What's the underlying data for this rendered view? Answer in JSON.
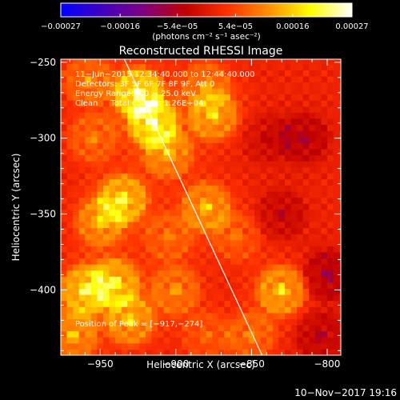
{
  "chart_data": {
    "type": "heatmap",
    "title": "Reconstructed RHESSI Image",
    "xlabel": "Heliocentric X (arcsec)",
    "ylabel": "Heliocentric Y (arcsec)",
    "xlim": [
      -976,
      -791
    ],
    "ylim": [
      -443,
      -248
    ],
    "x_ticks": [
      -950,
      -900,
      -850,
      -800
    ],
    "x_tick_labels": [
      "−950",
      "−900",
      "−850",
      "−800"
    ],
    "y_ticks": [
      -250,
      -300,
      -350,
      -400
    ],
    "y_tick_labels": [
      "−250",
      "−300",
      "−350",
      "−400"
    ],
    "colorbar": {
      "range": [
        -0.00027,
        0.00027
      ],
      "tick_values": [
        -0.00027,
        -0.00016,
        -5.4e-05,
        5.4e-05,
        0.00016,
        0.00027
      ],
      "tick_labels": [
        "−0.00027",
        "−0.00016",
        "−5.4e−05",
        "5.4e−05",
        "0.00016",
        "0.00027"
      ],
      "unit_label": "(photons cm⁻² s⁻¹ asec⁻²)",
      "colors": [
        "#0000ff",
        "#4000c0",
        "#800080",
        "#c00000",
        "#ff3000",
        "#ff9000",
        "#ffff00",
        "#ffffff"
      ]
    },
    "annotations": [
      "11−Jun−2015 12:34:40.000 to 12:44:40.000",
      "Detectors: 3F 5F 6F 7F 8F 9F, Att 0",
      "Energy Range: 7.0 − 25.0 keV",
      "Clean     Total counts: 1.26E+04"
    ],
    "peak_label": "Position of Peak = [−917,−274]",
    "peak": [
      -917,
      -274
    ],
    "limb_line": [
      [
        -934,
        -248
      ],
      [
        -843,
        -443
      ]
    ],
    "sources": [
      {
        "x": -925,
        "y": -270,
        "value": 0.00027
      },
      {
        "x": -915,
        "y": -290,
        "value": 0.00025
      },
      {
        "x": -905,
        "y": -310,
        "value": 0.00015
      },
      {
        "x": -958,
        "y": -262,
        "value": 0.00012
      },
      {
        "x": -935,
        "y": -340,
        "value": 0.00022
      },
      {
        "x": -950,
        "y": -355,
        "value": 0.00016
      },
      {
        "x": -960,
        "y": -400,
        "value": 0.00022
      },
      {
        "x": -940,
        "y": -395,
        "value": 0.0002
      },
      {
        "x": -930,
        "y": -420,
        "value": 0.00018
      },
      {
        "x": -968,
        "y": -430,
        "value": 0.00016
      },
      {
        "x": -900,
        "y": -400,
        "value": 0.00013
      },
      {
        "x": -880,
        "y": -345,
        "value": 0.00017
      },
      {
        "x": -875,
        "y": -285,
        "value": 0.00018
      },
      {
        "x": -880,
        "y": -265,
        "value": 0.00012
      },
      {
        "x": -830,
        "y": -400,
        "value": 0.0002
      },
      {
        "x": -850,
        "y": -430,
        "value": 0.00011
      },
      {
        "x": -860,
        "y": -365,
        "value": 9e-05
      },
      {
        "x": -905,
        "y": -365,
        "value": 0.0001
      },
      {
        "x": -955,
        "y": -300,
        "value": 0.00011
      },
      {
        "x": -880,
        "y": -430,
        "value": 8e-05
      },
      {
        "x": -830,
        "y": -350,
        "value": -8e-05
      },
      {
        "x": -815,
        "y": -300,
        "value": -0.0001
      },
      {
        "x": -800,
        "y": -390,
        "value": -0.00012
      },
      {
        "x": -840,
        "y": -300,
        "value": -6e-05
      },
      {
        "x": -805,
        "y": -430,
        "value": -9e-05
      }
    ]
  },
  "footer": {
    "timestamp": "10−Nov−2017 19:16"
  }
}
